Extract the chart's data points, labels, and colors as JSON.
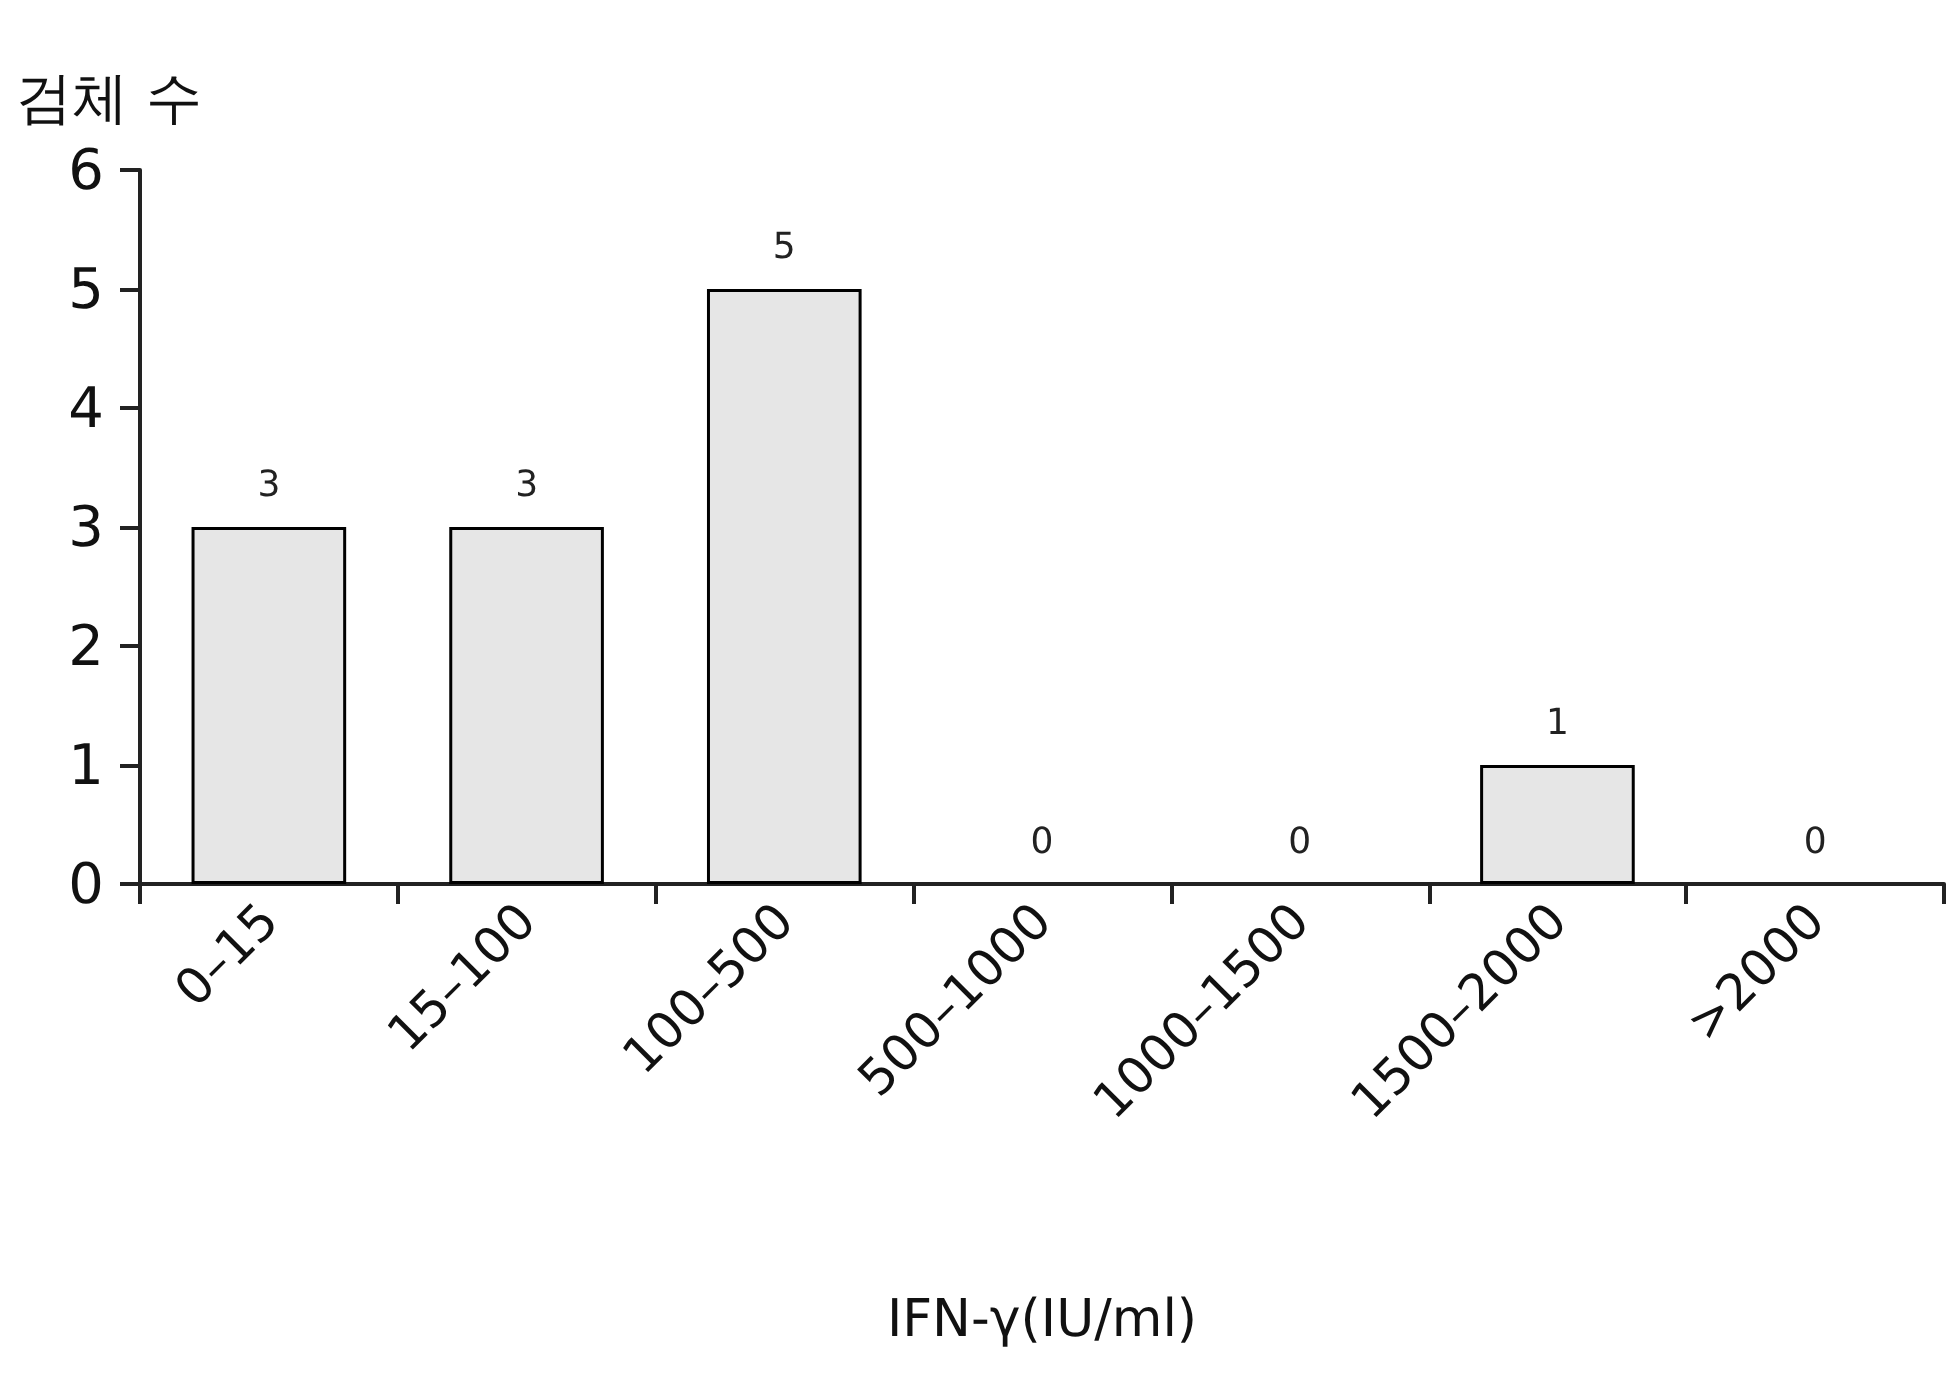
{
  "chart_data": {
    "type": "bar",
    "ylabel": "검체 수",
    "xlabel": "IFN-γ(IU/ml)",
    "categories": [
      "0–15",
      "15–100",
      "100–500",
      "500–1000",
      "1000–1500",
      "1500–2000",
      ">2000"
    ],
    "values": [
      3,
      3,
      5,
      0,
      0,
      1,
      0
    ],
    "color": "#e6e6e6",
    "ylim": [
      0,
      6
    ],
    "yticks": [
      0,
      1,
      2,
      3,
      4,
      5,
      6
    ],
    "grid": false,
    "data_labels": true
  }
}
